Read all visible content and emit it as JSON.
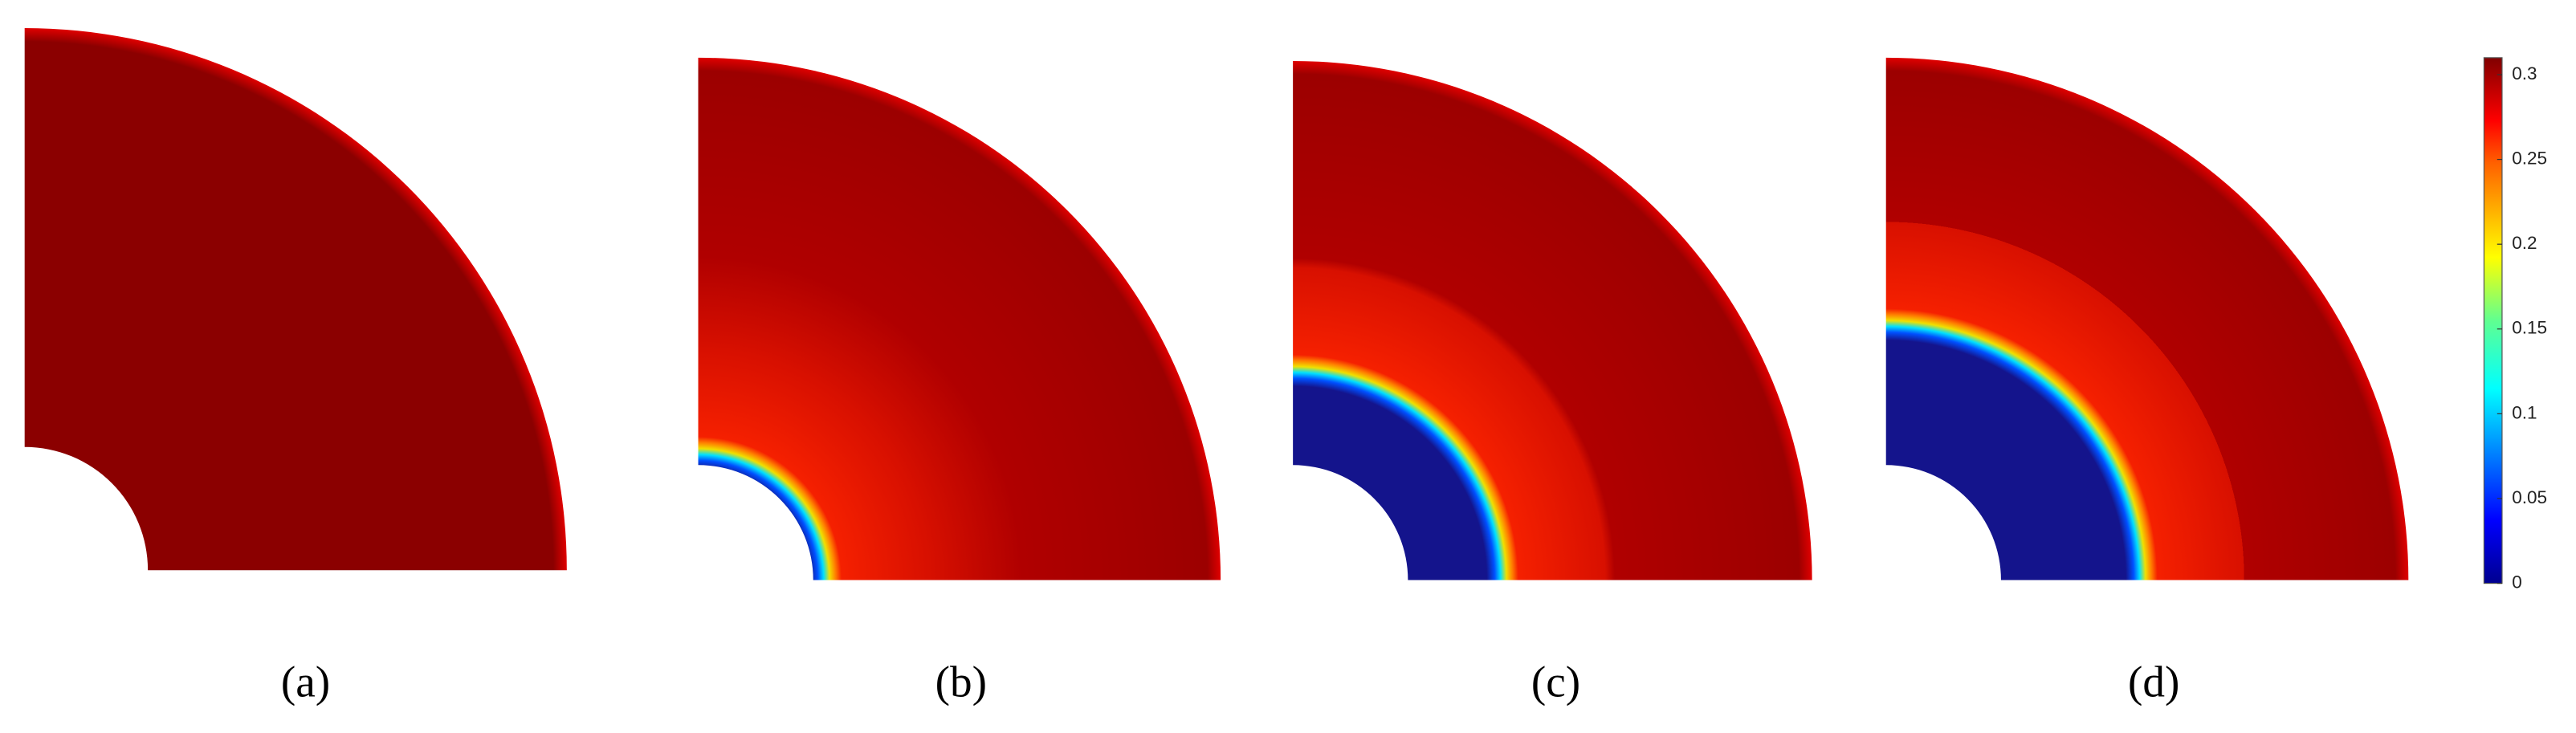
{
  "panels": [
    {
      "label": "(a)"
    },
    {
      "label": "(b)"
    },
    {
      "label": "(c)"
    },
    {
      "label": "(d)"
    }
  ],
  "colorbar": {
    "range": [
      0,
      0.31
    ],
    "ticks": [
      0,
      0.05,
      0.1,
      0.15,
      0.2,
      0.25,
      0.3
    ]
  }
}
